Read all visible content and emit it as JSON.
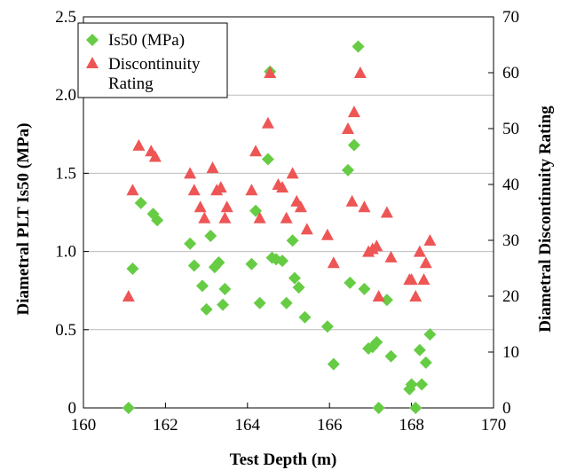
{
  "chart_data": {
    "type": "scatter",
    "xlabel": "Test Depth (m)",
    "ylabel": "Diametral PLT Is50 (MPa)",
    "y2label": "Diametral Discontinuity Rating",
    "xlim": [
      160,
      170
    ],
    "ylim": [
      0,
      2.5
    ],
    "y2lim": [
      0,
      70
    ],
    "xticks": [
      "160",
      "162",
      "164",
      "166",
      "168",
      "170"
    ],
    "yticks": [
      "0",
      "0.5",
      "1.0",
      "1.5",
      "2.0",
      "2.5"
    ],
    "y2ticks": [
      "0",
      "10",
      "20",
      "30",
      "40",
      "50",
      "60",
      "70"
    ],
    "grid": "horizontal",
    "legend_position": "top-left",
    "series": [
      {
        "name": "Is50 (MPa)",
        "axis": "left",
        "marker": "diamond",
        "color": "#66cc44",
        "points": [
          [
            161.1,
            0.0
          ],
          [
            161.2,
            0.89
          ],
          [
            161.4,
            1.31
          ],
          [
            161.7,
            1.24
          ],
          [
            161.8,
            1.2
          ],
          [
            162.6,
            1.05
          ],
          [
            162.7,
            0.91
          ],
          [
            162.9,
            0.78
          ],
          [
            163.0,
            0.63
          ],
          [
            163.1,
            1.1
          ],
          [
            163.2,
            0.9
          ],
          [
            163.3,
            0.93
          ],
          [
            163.4,
            0.66
          ],
          [
            163.45,
            0.76
          ],
          [
            164.1,
            0.92
          ],
          [
            164.2,
            1.26
          ],
          [
            164.3,
            0.67
          ],
          [
            164.5,
            1.59
          ],
          [
            164.55,
            2.15
          ],
          [
            164.6,
            0.96
          ],
          [
            164.7,
            0.95
          ],
          [
            164.85,
            0.94
          ],
          [
            164.95,
            0.67
          ],
          [
            165.1,
            1.07
          ],
          [
            165.15,
            0.83
          ],
          [
            165.25,
            0.77
          ],
          [
            165.4,
            0.58
          ],
          [
            165.95,
            0.52
          ],
          [
            166.1,
            0.28
          ],
          [
            166.45,
            1.52
          ],
          [
            166.5,
            0.8
          ],
          [
            166.6,
            1.68
          ],
          [
            166.7,
            2.31
          ],
          [
            166.85,
            0.76
          ],
          [
            166.95,
            0.38
          ],
          [
            167.05,
            0.39
          ],
          [
            167.15,
            0.42
          ],
          [
            167.2,
            0.0
          ],
          [
            167.4,
            0.69
          ],
          [
            167.5,
            0.33
          ],
          [
            167.95,
            0.12
          ],
          [
            168.0,
            0.15
          ],
          [
            168.1,
            0.0
          ],
          [
            168.2,
            0.37
          ],
          [
            168.25,
            0.15
          ],
          [
            168.35,
            0.29
          ],
          [
            168.45,
            0.47
          ]
        ]
      },
      {
        "name": "Discontinuity Rating",
        "axis": "right",
        "marker": "triangle",
        "color": "#ee5555",
        "points": [
          [
            161.1,
            20
          ],
          [
            161.2,
            39
          ],
          [
            161.35,
            47
          ],
          [
            161.65,
            46
          ],
          [
            161.75,
            45
          ],
          [
            162.6,
            42
          ],
          [
            162.7,
            39
          ],
          [
            162.85,
            36
          ],
          [
            162.95,
            34
          ],
          [
            163.15,
            43
          ],
          [
            163.25,
            39
          ],
          [
            163.35,
            39.5
          ],
          [
            163.45,
            34
          ],
          [
            163.5,
            36
          ],
          [
            164.1,
            39
          ],
          [
            164.2,
            46
          ],
          [
            164.3,
            34
          ],
          [
            164.5,
            51
          ],
          [
            164.55,
            60
          ],
          [
            164.75,
            40
          ],
          [
            164.85,
            39.5
          ],
          [
            164.95,
            34
          ],
          [
            165.1,
            42
          ],
          [
            165.2,
            37
          ],
          [
            165.3,
            36
          ],
          [
            165.45,
            32
          ],
          [
            165.95,
            31
          ],
          [
            166.1,
            26
          ],
          [
            166.45,
            50
          ],
          [
            166.55,
            37
          ],
          [
            166.6,
            53
          ],
          [
            166.75,
            60
          ],
          [
            166.85,
            36
          ],
          [
            166.95,
            28
          ],
          [
            167.05,
            28.5
          ],
          [
            167.15,
            29
          ],
          [
            167.2,
            20
          ],
          [
            167.4,
            35
          ],
          [
            167.5,
            27
          ],
          [
            167.95,
            23
          ],
          [
            168.0,
            23
          ],
          [
            168.1,
            20
          ],
          [
            168.2,
            28
          ],
          [
            168.3,
            23
          ],
          [
            168.35,
            26
          ],
          [
            168.45,
            30
          ]
        ]
      }
    ],
    "legend": [
      "Is50 (MPa)",
      "Discontinuity\nRating"
    ]
  }
}
